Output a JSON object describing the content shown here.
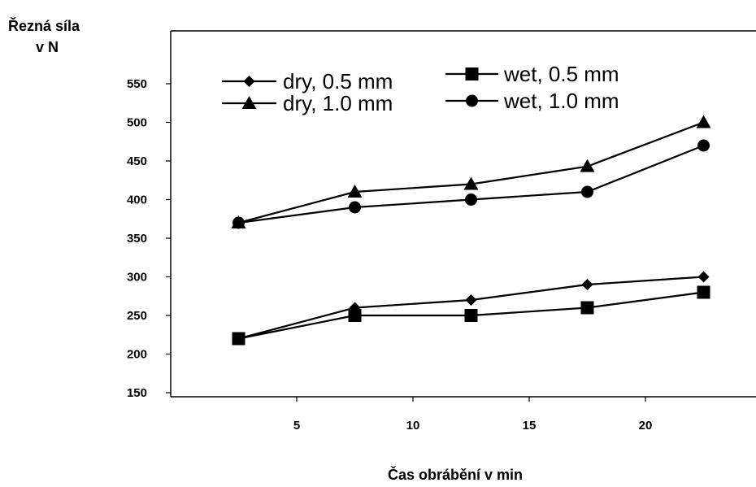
{
  "chart_data": {
    "type": "line",
    "ylabel_line1": "Řezná síla",
    "ylabel_line2": "v N",
    "xlabel": "Čas obrábění v min",
    "xlim": [
      0,
      25
    ],
    "ylim": [
      150,
      580
    ],
    "x_ticks": [
      5,
      10,
      15,
      20
    ],
    "y_ticks": [
      150,
      200,
      250,
      300,
      350,
      400,
      450,
      500,
      550
    ],
    "x": [
      2.5,
      7.5,
      12.5,
      17.5,
      22.5
    ],
    "series": [
      {
        "name": "dry, 0.5 mm",
        "marker": "diamond",
        "values": [
          220,
          260,
          270,
          290,
          300
        ]
      },
      {
        "name": "wet, 0.5 mm",
        "marker": "square",
        "values": [
          220,
          250,
          250,
          260,
          280
        ]
      },
      {
        "name": "dry, 1.0 mm",
        "marker": "triangle",
        "values": [
          370,
          410,
          420,
          443,
          500
        ]
      },
      {
        "name": "wet, 1.0  mm",
        "marker": "circle",
        "values": [
          370,
          390,
          400,
          410,
          470
        ]
      }
    ],
    "grid": false,
    "legend_position": "top"
  }
}
